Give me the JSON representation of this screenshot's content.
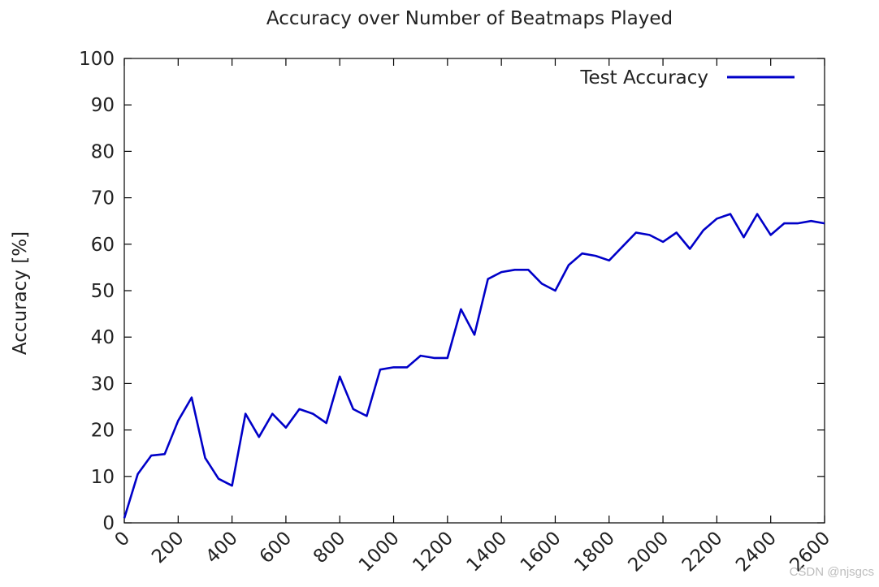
{
  "chart_data": {
    "type": "line",
    "title": "Accuracy over Number of Beatmaps Played",
    "xlabel": "",
    "ylabel": "Accuracy [%]",
    "xlim": [
      0,
      2600
    ],
    "ylim": [
      0,
      100
    ],
    "xticks": [
      0,
      200,
      400,
      600,
      800,
      1000,
      1200,
      1400,
      1600,
      1800,
      2000,
      2200,
      2400,
      2600
    ],
    "yticks": [
      0,
      10,
      20,
      30,
      40,
      50,
      60,
      70,
      80,
      90,
      100
    ],
    "grid": false,
    "legend_position": "top-right",
    "series": [
      {
        "name": "Test Accuracy",
        "color": "#0000c8",
        "x": [
          0,
          50,
          100,
          150,
          200,
          250,
          300,
          350,
          400,
          450,
          500,
          550,
          600,
          650,
          700,
          750,
          800,
          850,
          900,
          950,
          1000,
          1050,
          1100,
          1150,
          1200,
          1250,
          1300,
          1350,
          1400,
          1450,
          1500,
          1550,
          1600,
          1650,
          1700,
          1750,
          1800,
          1850,
          1900,
          1950,
          2000,
          2050,
          2100,
          2150,
          2200,
          2250,
          2300,
          2350,
          2400,
          2450,
          2500,
          2550,
          2600
        ],
        "values": [
          1,
          10.5,
          14.5,
          14.8,
          22,
          27,
          14,
          9.5,
          8,
          23.5,
          18.5,
          23.5,
          20.5,
          24.5,
          23.5,
          21.5,
          31.5,
          24.5,
          23,
          33,
          33.5,
          33.5,
          36,
          35.5,
          35.5,
          46,
          40.5,
          52.5,
          54,
          54.5,
          54.5,
          51.5,
          50,
          55.5,
          58,
          57.5,
          56.5,
          59.5,
          62.5,
          62,
          60.5,
          62.5,
          59,
          63,
          65.5,
          66.5,
          61.5,
          66.5,
          62,
          64.5,
          64.5,
          65,
          64.5
        ]
      }
    ]
  },
  "watermark": "CSDN @njsgcs"
}
